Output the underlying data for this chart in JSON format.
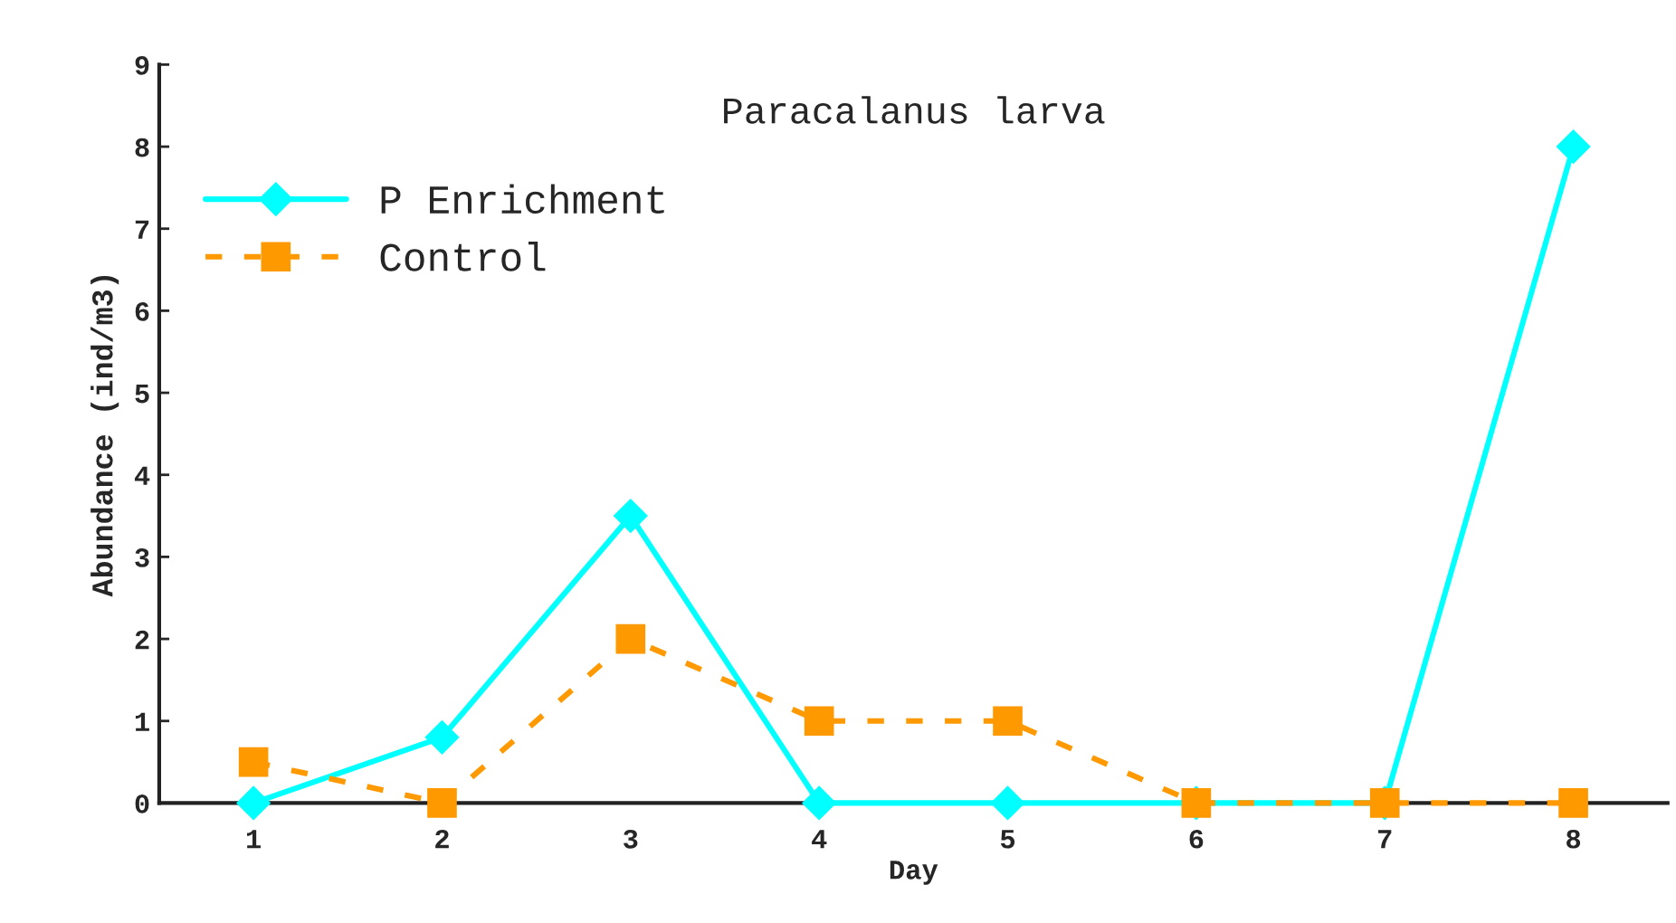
{
  "chart_data": {
    "type": "line",
    "title": "Paracalanus larva",
    "xlabel": "Day",
    "ylabel": "Abundance (ind/m3)",
    "categories": [
      "1",
      "2",
      "3",
      "4",
      "5",
      "6",
      "7",
      "8"
    ],
    "series": [
      {
        "name": "P Enrichment",
        "color": "#00ffff",
        "marker": "diamond",
        "line_style": "solid",
        "values": [
          0,
          0.8,
          3.5,
          0,
          0,
          0,
          0,
          8
        ]
      },
      {
        "name": "Control",
        "color": "#ff9900",
        "marker": "square",
        "line_style": "dashed",
        "values": [
          0.5,
          0,
          2,
          1,
          1,
          0,
          0,
          0
        ]
      }
    ],
    "ylim": [
      0,
      9
    ],
    "yticks": [
      0,
      1,
      2,
      3,
      4,
      5,
      6,
      7,
      8,
      9
    ],
    "grid": false,
    "legend": "top left"
  }
}
